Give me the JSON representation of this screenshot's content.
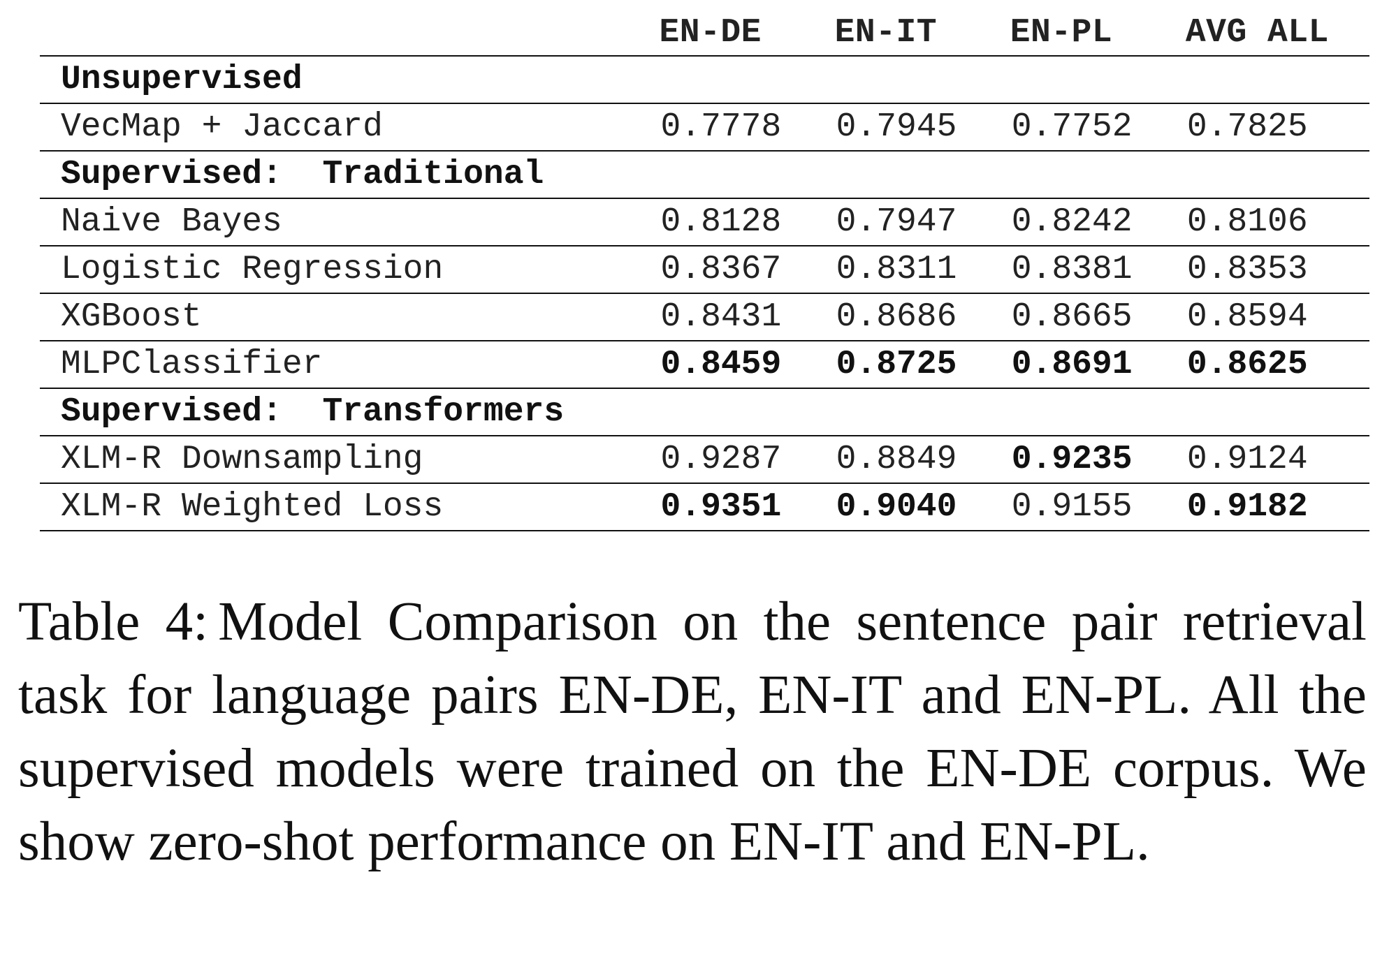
{
  "table": {
    "columns": [
      "",
      "EN-DE",
      "EN-IT",
      "EN-PL",
      "AVG ALL"
    ],
    "sections": [
      {
        "label": "Unsupervised",
        "rows": [
          {
            "name": "VecMap + Jaccard",
            "values": [
              "0.7778",
              "0.7945",
              "0.7752",
              "0.7825"
            ],
            "bold": [
              false,
              false,
              false,
              false
            ]
          }
        ]
      },
      {
        "label": "Supervised:  Traditional",
        "rows": [
          {
            "name": "Naive Bayes",
            "values": [
              "0.8128",
              "0.7947",
              "0.8242",
              "0.8106"
            ],
            "bold": [
              false,
              false,
              false,
              false
            ]
          },
          {
            "name": "Logistic Regression",
            "values": [
              "0.8367",
              "0.8311",
              "0.8381",
              "0.8353"
            ],
            "bold": [
              false,
              false,
              false,
              false
            ]
          },
          {
            "name": "XGBoost",
            "values": [
              "0.8431",
              "0.8686",
              "0.8665",
              "0.8594"
            ],
            "bold": [
              false,
              false,
              false,
              false
            ]
          },
          {
            "name": "MLPClassifier",
            "values": [
              "0.8459",
              "0.8725",
              "0.8691",
              "0.8625"
            ],
            "bold": [
              true,
              true,
              true,
              true
            ]
          }
        ]
      },
      {
        "label": "Supervised:  Transformers",
        "rows": [
          {
            "name": "XLM-R Downsampling",
            "values": [
              "0.9287",
              "0.8849",
              "0.9235",
              "0.9124"
            ],
            "bold": [
              false,
              false,
              true,
              false
            ]
          },
          {
            "name": "XLM-R Weighted Loss",
            "values": [
              "0.9351",
              "0.9040",
              "0.9155",
              "0.9182"
            ],
            "bold": [
              true,
              true,
              false,
              true
            ]
          }
        ]
      }
    ]
  },
  "caption": {
    "label": "Table 4:",
    "text": "Model Comparison on the sentence pair retrieval task for language pairs EN-DE, EN-IT and EN-PL. All the supervised models were trained on the EN-DE corpus. We show zero-shot performance on EN-IT and EN-PL."
  }
}
